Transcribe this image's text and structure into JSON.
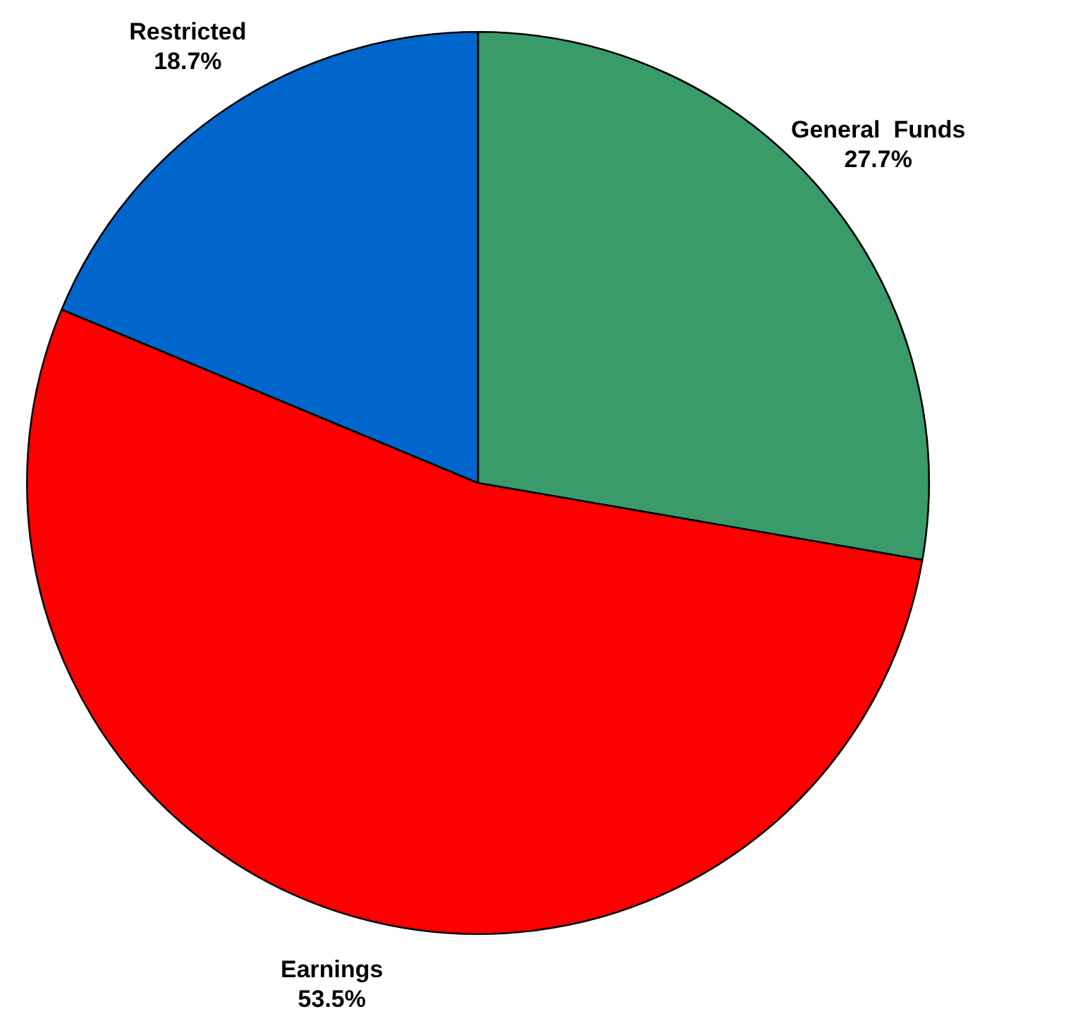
{
  "chart_data": {
    "type": "pie",
    "categories": [
      "General  Funds",
      "Earnings",
      "Restricted"
    ],
    "values": [
      27.7,
      53.5,
      18.7
    ],
    "colors": [
      "#3a9b6a",
      "#ff0000",
      "#0066cc"
    ],
    "value_labels": [
      "27.7%",
      "53.5%",
      "18.7%"
    ],
    "legend": false
  }
}
